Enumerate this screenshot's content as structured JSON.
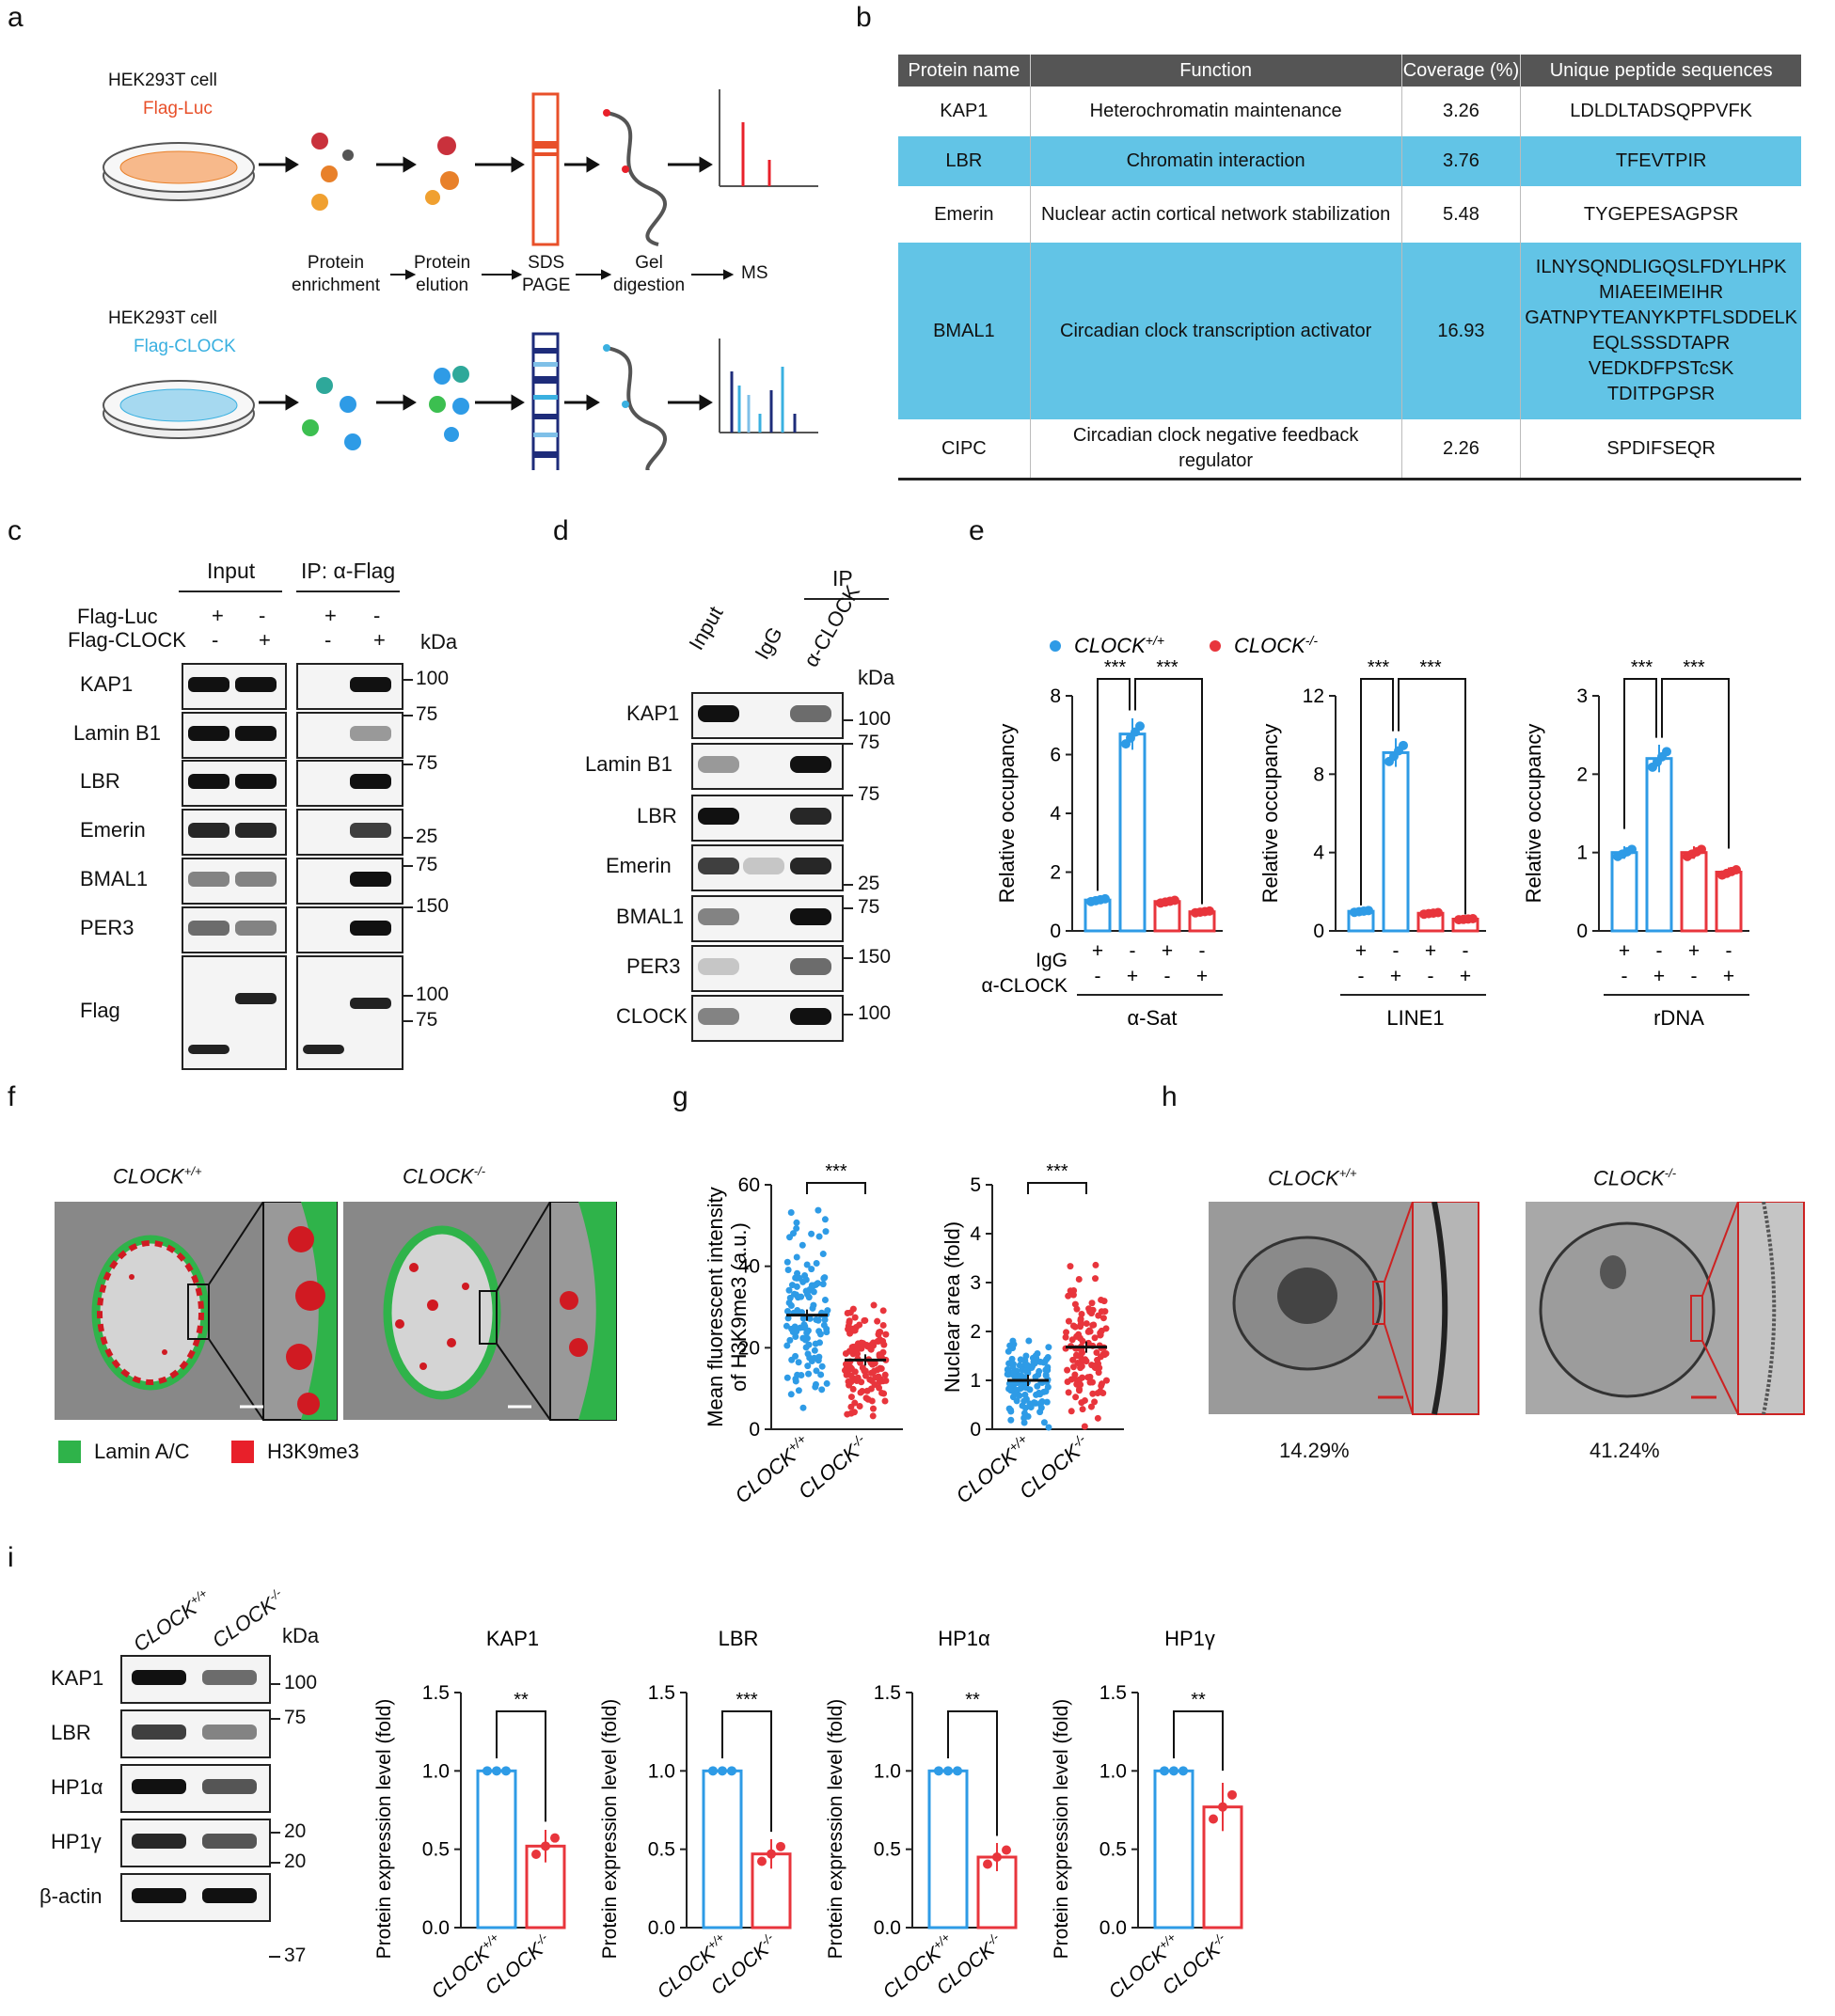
{
  "panels": {
    "a": "a",
    "b": "b",
    "c": "c",
    "d": "d",
    "e": "e",
    "f": "f",
    "g": "g",
    "h": "h",
    "i": "i"
  },
  "panel_a": {
    "cell_top": "HEK293T cell",
    "flag_luc": "Flag-Luc",
    "cell_bottom": "HEK293T cell",
    "flag_clock": "Flag-CLOCK",
    "steps": [
      "Protein\nenrichment",
      "Protein\nelution",
      "SDS\nPAGE",
      "Gel\ndigestion",
      "MS"
    ],
    "colors": {
      "luc": "#e8502a",
      "clock": "#3ab0e0"
    }
  },
  "panel_b": {
    "headers": [
      "Protein name",
      "Function",
      "Coverage (%)",
      "Unique peptide sequences"
    ],
    "rows": [
      {
        "name": "KAP1",
        "function": "Heterochromatin maintenance",
        "coverage": "3.26",
        "peptides": [
          "LDLDLTADSQPPVFK"
        ],
        "hl": false
      },
      {
        "name": "LBR",
        "function": "Chromatin interaction",
        "coverage": "3.76",
        "peptides": [
          "TFEVTPIR"
        ],
        "hl": true
      },
      {
        "name": "Emerin",
        "function": "Nuclear actin cortical network stabilization",
        "coverage": "5.48",
        "peptides": [
          "TYGEPESAGPSR"
        ],
        "hl": false
      },
      {
        "name": "BMAL1",
        "function": "Circadian clock transcription activator",
        "coverage": "16.93",
        "peptides": [
          "ILNYSQNDLIGQSLFDYLHPK",
          "MIAEEIMEIHR",
          "GATNPYTEANYKPTFLSDDELK",
          "EQLSSSDTAPR",
          "VEDKDFPSTcSK",
          "TDITPGPSR"
        ],
        "hl": true
      },
      {
        "name": "CIPC",
        "function": "Circadian clock negative feedback regulator",
        "coverage": "2.26",
        "peptides": [
          "SPDIFSEQR"
        ],
        "hl": false
      }
    ]
  },
  "panel_c": {
    "input": "Input",
    "ip": "IP: α-Flag",
    "flag_luc": "Flag-Luc",
    "flag_clock": "Flag-CLOCK",
    "kda": "kDa",
    "signs_luc": [
      "+",
      "-",
      "+",
      "-"
    ],
    "signs_clock": [
      "-",
      "+",
      "-",
      "+"
    ],
    "rows": [
      "KAP1",
      "Lamin B1",
      "LBR",
      "Emerin",
      "BMAL1",
      "PER3",
      "Flag"
    ],
    "markers": [
      "100",
      "75",
      "75",
      "25",
      "75",
      "150",
      "100",
      "75"
    ]
  },
  "panel_d": {
    "ip": "IP",
    "lanes": [
      "Input",
      "IgG",
      "α-CLOCK"
    ],
    "kda": "kDa",
    "rows": [
      "KAP1",
      "Lamin B1",
      "LBR",
      "Emerin",
      "BMAL1",
      "PER3",
      "CLOCK"
    ],
    "markers": [
      "100",
      "75",
      "75",
      "25",
      "75",
      "150",
      "100"
    ],
    "asterisk": "*"
  },
  "panel_e": {
    "legend": [
      {
        "name": "CLOCK",
        "sup": "+/+",
        "color": "#2e9be6"
      },
      {
        "name": "CLOCK",
        "sup": "-/-",
        "color": "#e8353c"
      }
    ],
    "ylabel": "Relative occupancy",
    "sig": "***",
    "row_labels": [
      "IgG",
      "α-CLOCK"
    ],
    "signs_igg": [
      "+",
      "-",
      "+",
      "-"
    ],
    "signs_clock": [
      "-",
      "+",
      "-",
      "+"
    ],
    "charts": [
      {
        "xlabel": "α-Sat",
        "ymax": 8,
        "ticks": [
          "0",
          "2",
          "4",
          "6",
          "8"
        ],
        "values": [
          1.05,
          6.7,
          1.0,
          0.65
        ]
      },
      {
        "xlabel": "LINE1",
        "ymax": 12,
        "ticks": [
          "0",
          "4",
          "8",
          "12"
        ],
        "values": [
          1.0,
          9.1,
          0.9,
          0.6
        ]
      },
      {
        "xlabel": "rDNA",
        "ymax": 3,
        "ticks": [
          "0",
          "1",
          "2",
          "3"
        ],
        "values": [
          1.0,
          2.2,
          1.0,
          0.75
        ]
      }
    ]
  },
  "panel_f": {
    "wt": "CLOCK",
    "wt_sup": "+/+",
    "ko": "CLOCK",
    "ko_sup": "-/-",
    "legend": [
      "Lamin A/C",
      "H3K9me3"
    ],
    "colors": {
      "lamin": "#2fb34a",
      "h3k9": "#e8202a"
    }
  },
  "panel_g": {
    "chart1": {
      "ylabel1": "Mean fluorescent intensity",
      "ylabel2": "of H3K9me3 (a.u.)",
      "ticks": [
        "0",
        "20",
        "40",
        "60"
      ],
      "ymax": 60,
      "means": [
        28,
        17
      ],
      "sig": "***"
    },
    "chart2": {
      "ylabel": "Nuclear area (fold)",
      "ticks": [
        "0",
        "1",
        "2",
        "3",
        "4",
        "5"
      ],
      "ymax": 5,
      "means": [
        1.0,
        1.68
      ],
      "sig": "***"
    },
    "xcats": [
      "CLOCK",
      "CLOCK"
    ],
    "xsups": [
      "+/+",
      "-/-"
    ]
  },
  "panel_h": {
    "wt": "CLOCK",
    "wt_sup": "+/+",
    "ko": "CLOCK",
    "ko_sup": "-/-",
    "pct_wt": "14.29%",
    "pct_ko": "41.24%"
  },
  "panel_i": {
    "lanes": [
      "CLOCK",
      "CLOCK"
    ],
    "lane_sups": [
      "+/+",
      "-/-"
    ],
    "kda": "kDa",
    "rows": [
      "KAP1",
      "LBR",
      "HP1α",
      "HP1γ",
      "β-actin"
    ],
    "markers": [
      "100",
      "75",
      "20",
      "20",
      "37"
    ],
    "ylabel": "Protein expression level (fold)",
    "ticks": [
      "0.0",
      "0.5",
      "1.0",
      "1.5"
    ],
    "charts": [
      {
        "title": "KAP1",
        "values": [
          1.0,
          0.52
        ],
        "sig": "**"
      },
      {
        "title": "LBR",
        "values": [
          1.0,
          0.47
        ],
        "sig": "***"
      },
      {
        "title": "HP1α",
        "values": [
          1.0,
          0.45
        ],
        "sig": "**"
      },
      {
        "title": "HP1γ",
        "values": [
          1.0,
          0.77
        ],
        "sig": "**"
      }
    ]
  },
  "chart_data": [
    {
      "type": "bar",
      "title": "α-Sat",
      "ylabel": "Relative occupancy",
      "categories": [
        "IgG CLOCK+/+",
        "α-CLOCK CLOCK+/+",
        "IgG CLOCK-/-",
        "α-CLOCK CLOCK-/-"
      ],
      "values": [
        1.05,
        6.7,
        1.0,
        0.65
      ],
      "ylim": [
        0,
        8
      ]
    },
    {
      "type": "bar",
      "title": "LINE1",
      "ylabel": "Relative occupancy",
      "categories": [
        "IgG CLOCK+/+",
        "α-CLOCK CLOCK+/+",
        "IgG CLOCK-/-",
        "α-CLOCK CLOCK-/-"
      ],
      "values": [
        1.0,
        9.1,
        0.9,
        0.6
      ],
      "ylim": [
        0,
        12
      ]
    },
    {
      "type": "bar",
      "title": "rDNA",
      "ylabel": "Relative occupancy",
      "categories": [
        "IgG CLOCK+/+",
        "α-CLOCK CLOCK+/+",
        "IgG CLOCK-/-",
        "α-CLOCK CLOCK-/-"
      ],
      "values": [
        1.0,
        2.2,
        1.0,
        0.75
      ],
      "ylim": [
        0,
        3
      ]
    },
    {
      "type": "scatter",
      "ylabel": "Mean fluorescent intensity of H3K9me3 (a.u.)",
      "categories": [
        "CLOCK+/+",
        "CLOCK-/-"
      ],
      "values": [
        28,
        17
      ],
      "ylim": [
        0,
        60
      ]
    },
    {
      "type": "scatter",
      "ylabel": "Nuclear area (fold)",
      "categories": [
        "CLOCK+/+",
        "CLOCK-/-"
      ],
      "values": [
        1.0,
        1.68
      ],
      "ylim": [
        0,
        5
      ]
    },
    {
      "type": "bar",
      "title": "KAP1",
      "ylabel": "Protein expression level (fold)",
      "categories": [
        "CLOCK+/+",
        "CLOCK-/-"
      ],
      "values": [
        1.0,
        0.52
      ],
      "ylim": [
        0,
        1.5
      ]
    },
    {
      "type": "bar",
      "title": "LBR",
      "ylabel": "Protein expression level (fold)",
      "categories": [
        "CLOCK+/+",
        "CLOCK-/-"
      ],
      "values": [
        1.0,
        0.47
      ],
      "ylim": [
        0,
        1.5
      ]
    },
    {
      "type": "bar",
      "title": "HP1α",
      "ylabel": "Protein expression level (fold)",
      "categories": [
        "CLOCK+/+",
        "CLOCK-/-"
      ],
      "values": [
        1.0,
        0.45
      ],
      "ylim": [
        0,
        1.5
      ]
    },
    {
      "type": "bar",
      "title": "HP1γ",
      "ylabel": "Protein expression level (fold)",
      "categories": [
        "CLOCK+/+",
        "CLOCK-/-"
      ],
      "values": [
        1.0,
        0.77
      ],
      "ylim": [
        0,
        1.5
      ]
    }
  ]
}
